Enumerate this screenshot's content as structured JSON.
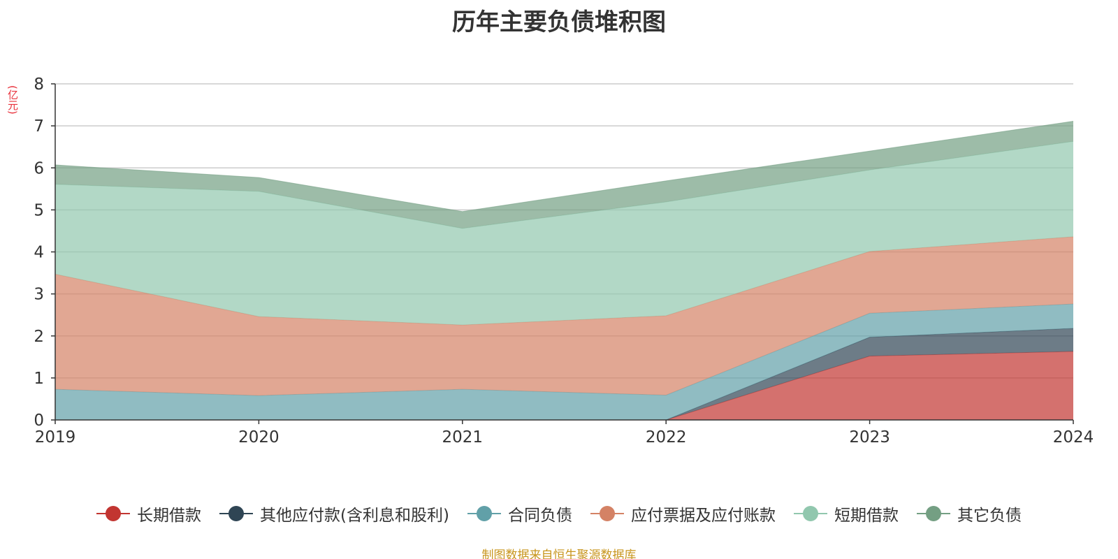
{
  "chart_data": {
    "type": "area",
    "stacked": true,
    "title": "历年主要负债堆积图",
    "ylabel": "(亿元)",
    "xlabel": "",
    "categories": [
      "2019",
      "2020",
      "2021",
      "2022",
      "2023",
      "2024"
    ],
    "ylim": [
      0,
      8
    ],
    "yticks": [
      0,
      1,
      2,
      3,
      4,
      5,
      6,
      7,
      8
    ],
    "grid": true,
    "legend_position": "bottom",
    "series": [
      {
        "name": "长期借款",
        "color": "#c23531",
        "values": [
          0,
          0,
          0,
          0,
          1.52,
          1.63
        ]
      },
      {
        "name": "其他应付款(含利息和股利)",
        "color": "#2f4554",
        "values": [
          0,
          0,
          0,
          0,
          0.45,
          0.55
        ]
      },
      {
        "name": "合同负债",
        "color": "#61a0a8",
        "values": [
          0.73,
          0.58,
          0.73,
          0.59,
          0.57,
          0.58
        ]
      },
      {
        "name": "应付票据及应付账款",
        "color": "#d48265",
        "values": [
          2.74,
          1.88,
          1.53,
          1.89,
          1.47,
          1.6
        ]
      },
      {
        "name": "短期借款",
        "color": "#91c7ae",
        "values": [
          2.14,
          2.98,
          2.3,
          2.71,
          1.94,
          2.27
        ]
      },
      {
        "name": "其它负债",
        "color": "#749f83",
        "values": [
          0.46,
          0.33,
          0.4,
          0.5,
          0.45,
          0.48
        ]
      }
    ]
  },
  "source": "制图数据来自恒生聚源数据库"
}
